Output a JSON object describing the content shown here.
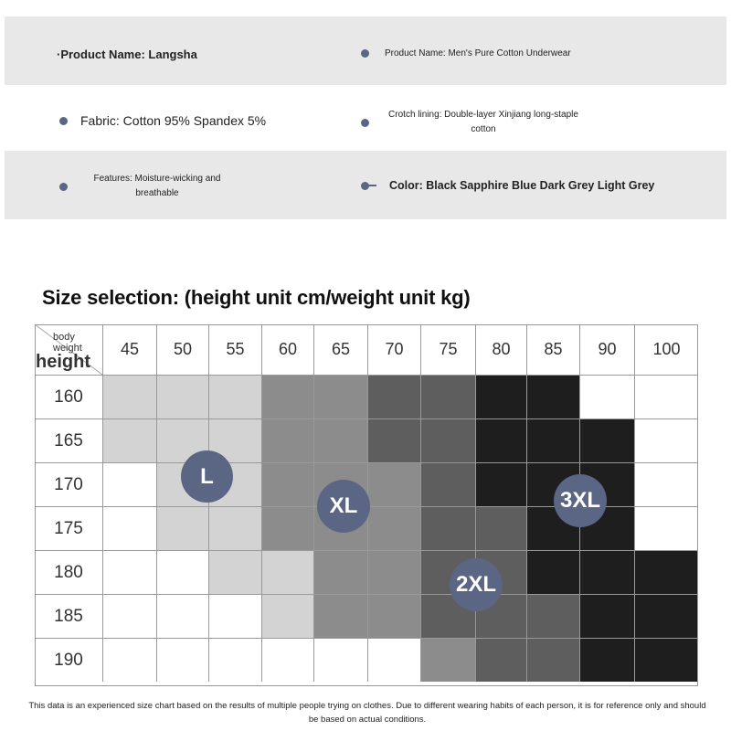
{
  "specs": {
    "product_name_left": "·Product Name: Langsha",
    "product_name_right": "Product Name: Men's Pure Cotton Underwear",
    "fabric": "Fabric: Cotton 95% Spandex 5%",
    "crotch_lining": "Crotch lining: Double-layer Xinjiang long-staple cotton",
    "features": "Features: Moisture-wicking and breathable",
    "color": "Color: Black Sapphire Blue Dark Grey Light Grey"
  },
  "size_title": "Size selection: (height unit cm/weight unit kg)",
  "chart_data": {
    "type": "heatmap",
    "title": "Size selection: (height unit cm/weight unit kg)",
    "xlabel": "body weight",
    "ylabel": "height",
    "x": [
      "45",
      "50",
      "55",
      "60",
      "65",
      "70",
      "75",
      "80",
      "85",
      "90",
      "100"
    ],
    "y": [
      "160",
      "165",
      "170",
      "175",
      "180",
      "185",
      "190"
    ],
    "size_levels": [
      "none",
      "L",
      "XL",
      "2XL",
      "3XL"
    ],
    "level_colors": [
      "#ffffff",
      "#d3d3d3",
      "#8c8c8c",
      "#5e5e5e",
      "#1e1e1e"
    ],
    "matrix": [
      [
        1,
        1,
        1,
        2,
        2,
        3,
        3,
        4,
        4,
        0,
        0
      ],
      [
        1,
        1,
        1,
        2,
        2,
        3,
        3,
        4,
        4,
        4,
        0
      ],
      [
        0,
        1,
        1,
        2,
        2,
        2,
        3,
        4,
        4,
        4,
        0
      ],
      [
        0,
        1,
        1,
        2,
        2,
        2,
        3,
        3,
        4,
        4,
        0
      ],
      [
        0,
        0,
        1,
        1,
        2,
        2,
        3,
        3,
        4,
        4,
        4
      ],
      [
        0,
        0,
        0,
        1,
        2,
        2,
        3,
        3,
        3,
        4,
        4
      ],
      [
        0,
        0,
        0,
        0,
        0,
        0,
        2,
        3,
        3,
        4,
        4
      ]
    ],
    "badges": [
      {
        "label": "L"
      },
      {
        "label": "XL"
      },
      {
        "label": "2XL"
      },
      {
        "label": "3XL"
      }
    ]
  },
  "footnote": "This data is an experienced size chart based on the results of multiple people trying on clothes. Due to different wearing habits of each person, it is for reference only and should be based on actual conditions."
}
